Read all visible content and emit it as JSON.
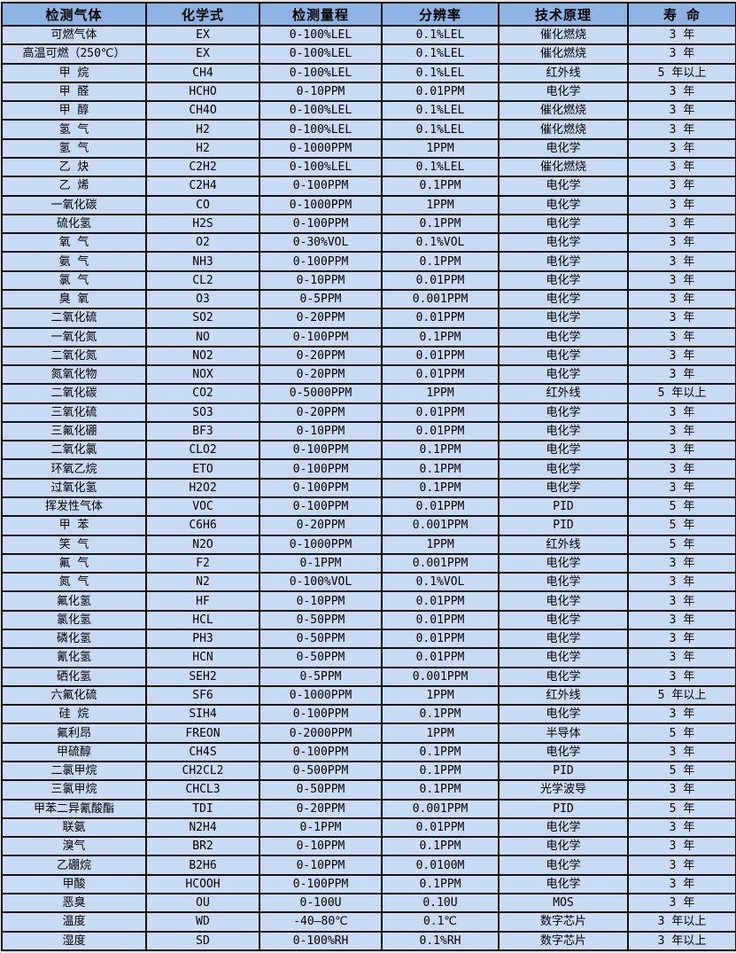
{
  "colors": {
    "header_bg": "#8DB4E2",
    "row_bg": "#C8DBF3",
    "border": "#141414",
    "page_bg": "#DCE3EE"
  },
  "table": {
    "columns": [
      "检测气体",
      "化学式",
      "检测量程",
      "分辨率",
      "技术原理",
      "寿 命"
    ],
    "column_keys": [
      "gas",
      "formula",
      "range",
      "resolution",
      "principle",
      "lifespan"
    ],
    "rows": [
      [
        "可燃气体",
        "EX",
        "0-100%LEL",
        "0.1%LEL",
        "催化燃烧",
        "3 年"
      ],
      [
        "高温可燃（250℃）",
        "EX",
        "0-100%LEL",
        "0.1%LEL",
        "催化燃烧",
        "3 年"
      ],
      [
        "甲 烷",
        "CH4",
        "0-100%LEL",
        "0.1%LEL",
        "红外线",
        "5 年以上"
      ],
      [
        "甲 醛",
        "HCHO",
        "0-10PPM",
        "0.01PPM",
        "电化学",
        "3 年"
      ],
      [
        "甲 醇",
        "CH4O",
        "0-100%LEL",
        "0.1%LEL",
        "催化燃烧",
        "3 年"
      ],
      [
        "氢 气",
        "H2",
        "0-100%LEL",
        "0.1%LEL",
        "催化燃烧",
        "3 年"
      ],
      [
        "氢 气",
        "H2",
        "0-1000PPM",
        "1PPM",
        "电化学",
        "3 年"
      ],
      [
        "乙 炔",
        "C2H2",
        "0-100%LEL",
        "0.1%LEL",
        "催化燃烧",
        "3 年"
      ],
      [
        "乙 烯",
        "C2H4",
        "0-100PPM",
        "0.1PPM",
        "电化学",
        "3 年"
      ],
      [
        "一氧化碳",
        "CO",
        "0-1000PPM",
        "1PPM",
        "电化学",
        "3 年"
      ],
      [
        "硫化氢",
        "H2S",
        "0-100PPM",
        "0.1PPM",
        "电化学",
        "3 年"
      ],
      [
        "氧 气",
        "O2",
        "0-30%VOL",
        "0.1%VOL",
        "电化学",
        "3 年"
      ],
      [
        "氨 气",
        "NH3",
        "0-100PPM",
        "0.1PPM",
        "电化学",
        "3 年"
      ],
      [
        "氯 气",
        "CL2",
        "0-10PPM",
        "0.01PPM",
        "电化学",
        "3 年"
      ],
      [
        "臭 氧",
        "O3",
        "0-5PPM",
        "0.001PPM",
        "电化学",
        "3 年"
      ],
      [
        "二氧化硫",
        "SO2",
        "0-20PPM",
        "0.01PPM",
        "电化学",
        "3 年"
      ],
      [
        "一氧化氮",
        "NO",
        "0-100PPM",
        "0.1PPM",
        "电化学",
        "3 年"
      ],
      [
        "二氧化氮",
        "NO2",
        "0-20PPM",
        "0.01PPM",
        "电化学",
        "3 年"
      ],
      [
        "氮氧化物",
        "NOX",
        "0-20PPM",
        "0.01PPM",
        "电化学",
        "3 年"
      ],
      [
        "二氧化碳",
        "CO2",
        "0-5000PPM",
        "1PPM",
        "红外线",
        "5 年以上"
      ],
      [
        "三氧化硫",
        "SO3",
        "0-20PPM",
        "0.01PPM",
        "电化学",
        "3 年"
      ],
      [
        "三氟化硼",
        "BF3",
        "0-10PPM",
        "0.01PPM",
        "电化学",
        "3 年"
      ],
      [
        "二氧化氯",
        "CLO2",
        "0-100PPM",
        "0.1PPM",
        "电化学",
        "3 年"
      ],
      [
        "环氧乙烷",
        "ETO",
        "0-100PPM",
        "0.1PPM",
        "电化学",
        "3 年"
      ],
      [
        "过氧化氢",
        "H2O2",
        "0-100PPM",
        "0.1PPM",
        "电化学",
        "3 年"
      ],
      [
        "挥发性气体",
        "VOC",
        "0-100PPM",
        "0.01PPM",
        "PID",
        "5 年"
      ],
      [
        "甲 苯",
        "C6H6",
        "0-20PPM",
        "0.001PPM",
        "PID",
        "5 年"
      ],
      [
        "笑 气",
        "N2O",
        "0-1000PPM",
        "1PPM",
        "红外线",
        "5 年"
      ],
      [
        "氟 气",
        "F2",
        "0-1PPM",
        "0.001PPM",
        "电化学",
        "3 年"
      ],
      [
        "氮 气",
        "N2",
        "0-100%VOL",
        "0.1%VOL",
        "电化学",
        "3 年"
      ],
      [
        "氟化氢",
        "HF",
        "0-10PPM",
        "0.01PPM",
        "电化学",
        "3 年"
      ],
      [
        "氯化氢",
        "HCL",
        "0-50PPM",
        "0.01PPM",
        "电化学",
        "3 年"
      ],
      [
        "磷化氢",
        "PH3",
        "0-50PPM",
        "0.01PPM",
        "电化学",
        "3 年"
      ],
      [
        "氰化氢",
        "HCN",
        "0-50PPM",
        "0.01PPM",
        "电化学",
        "3 年"
      ],
      [
        "硒化氢",
        "SEH2",
        "0-5PPM",
        "0.001PPM",
        "电化学",
        "3 年"
      ],
      [
        "六氟化硫",
        "SF6",
        "0-1000PPM",
        "1PPM",
        "红外线",
        "5 年以上"
      ],
      [
        "硅 烷",
        "SIH4",
        "0-100PPM",
        "0.1PPM",
        "电化学",
        "3 年"
      ],
      [
        "氟利昂",
        "FREON",
        "0-2000PPM",
        "1PPM",
        "半导体",
        "5 年"
      ],
      [
        "甲硫醇",
        "CH4S",
        "0-100PPM",
        "0.1PPM",
        "电化学",
        "3 年"
      ],
      [
        "二氯甲烷",
        "CH2CL2",
        "0-500PPM",
        "0.1PPM",
        "PID",
        "5 年"
      ],
      [
        "三氯甲烷",
        "CHCL3",
        "0-50PPM",
        "0.1PPM",
        "光学波导",
        "3 年"
      ],
      [
        "甲苯二异氰酸酯",
        "TDI",
        "0-20PPM",
        "0.001PPM",
        "PID",
        "5 年"
      ],
      [
        "联氨",
        "N2H4",
        "0-1PPM",
        "0.01PPM",
        "电化学",
        "3 年"
      ],
      [
        "溴气",
        "BR2",
        "0-10PPM",
        "0.1PPM",
        "电化学",
        "3 年"
      ],
      [
        "乙硼烷",
        "B2H6",
        "0-10PPM",
        "0.0100M",
        "电化学",
        "3 年"
      ],
      [
        "甲酸",
        "HCOOH",
        "0-100PPM",
        "0.1PPM",
        "电化学",
        "3 年"
      ],
      [
        "恶臭",
        "OU",
        "0-100U",
        "0.10U",
        "MOS",
        "3 年"
      ],
      [
        "温度",
        "WD",
        "-40—80℃",
        "0.1℃",
        "数字芯片",
        "3 年以上"
      ],
      [
        "湿度",
        "SD",
        "0-100%RH",
        "0.1%RH",
        "数字芯片",
        "3 年以上"
      ]
    ]
  }
}
